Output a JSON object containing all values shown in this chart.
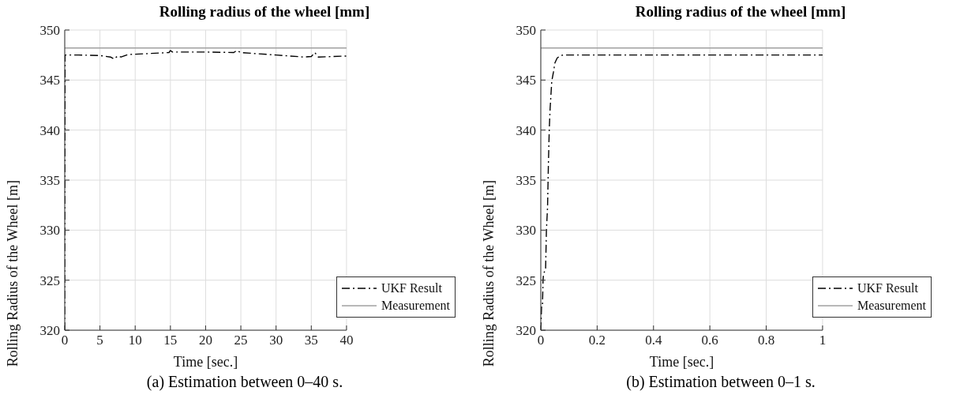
{
  "chart_data": [
    {
      "type": "line",
      "title": "Rolling radius of the wheel [mm]",
      "xlabel": "Time [sec.]",
      "ylabel": "Rolling Radius of the Wheel [m]",
      "xlim": [
        0,
        40
      ],
      "xticks": [
        0,
        5,
        10,
        15,
        20,
        25,
        30,
        35,
        40
      ],
      "ylim": [
        320,
        350
      ],
      "yticks": [
        320,
        325,
        330,
        335,
        340,
        345,
        350
      ],
      "grid": true,
      "legend": "bottom right",
      "series": [
        {
          "name": "UKF Result",
          "color": "#000000",
          "line_style": "dashdot",
          "x": [
            0,
            0.05,
            2,
            5,
            6.5,
            7,
            7.5,
            8,
            9,
            12,
            14.8,
            15,
            15.3,
            20,
            24,
            24.4,
            25,
            30,
            34,
            35,
            35.5,
            36,
            40
          ],
          "values": [
            320,
            347.5,
            347.5,
            347.45,
            347.3,
            347.1,
            347.4,
            347.3,
            347.55,
            347.65,
            347.75,
            347.95,
            347.8,
            347.8,
            347.75,
            347.95,
            347.75,
            347.5,
            347.3,
            347.35,
            347.75,
            347.3,
            347.4
          ]
        },
        {
          "name": "Measurement",
          "color": "#a0a0a0",
          "line_style": "solid",
          "x": [
            0,
            40
          ],
          "values": [
            348.2,
            348.2
          ]
        }
      ],
      "annotations": [
        "(a) Estimation between 0–40 s."
      ]
    },
    {
      "type": "line",
      "title": "Rolling radius of the wheel [mm]",
      "xlabel": "Time [sec.]",
      "ylabel": "Rolling Radius of the Wheel [m]",
      "xlim": [
        0,
        1
      ],
      "xticks": [
        0,
        0.2,
        0.4,
        0.6,
        0.8,
        1
      ],
      "ylim": [
        320,
        350
      ],
      "yticks": [
        320,
        325,
        330,
        335,
        340,
        345,
        350
      ],
      "grid": true,
      "legend": "bottom right",
      "series": [
        {
          "name": "UKF Result",
          "color": "#000000",
          "line_style": "dashdot",
          "x": [
            0,
            0.003,
            0.006,
            0.008,
            0.01,
            0.017,
            0.02,
            0.024,
            0.027,
            0.03,
            0.033,
            0.039,
            0.045,
            0.05,
            0.058,
            0.07,
            0.08,
            0.5,
            1
          ],
          "values": [
            320,
            322.5,
            322.5,
            325,
            325.7,
            326,
            330,
            332.3,
            336.6,
            340,
            342.1,
            344.9,
            345.8,
            346.7,
            347.2,
            347.45,
            347.5,
            347.5,
            347.5
          ]
        },
        {
          "name": "Measurement",
          "color": "#a0a0a0",
          "line_style": "solid",
          "x": [
            0,
            1
          ],
          "values": [
            348.2,
            348.2
          ]
        }
      ],
      "annotations": [
        "(b) Estimation between 0–1 s."
      ]
    }
  ]
}
